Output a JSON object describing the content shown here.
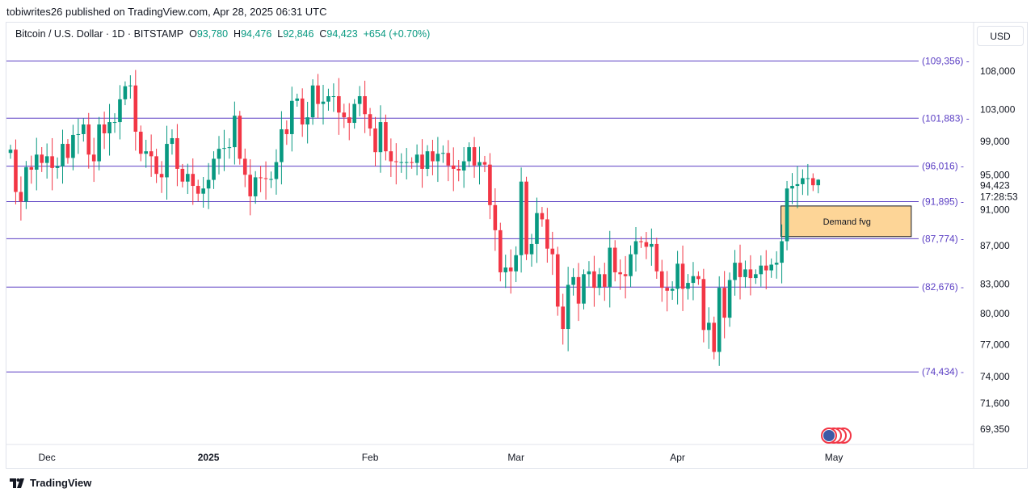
{
  "header": {
    "published": "tobiwrites26 published on TradingView.com, Apr 28, 2025 06:31 UTC"
  },
  "legend": {
    "symbol": "Bitcoin / U.S. Dollar · 1D · BITSTAMP",
    "o_label": "O",
    "o": "93,780",
    "h_label": "H",
    "h": "94,476",
    "l_label": "L",
    "l": "92,846",
    "c_label": "C",
    "c": "94,423",
    "change": "+654 (+0.70%)"
  },
  "currency": "USD",
  "price_tag": {
    "price": "94,423",
    "countdown": "17:28:53"
  },
  "annotation": {
    "label": "Demand fvg",
    "top": 91400,
    "bottom": 88000,
    "from_index": 148,
    "to_index": 173
  },
  "footer": {
    "brand": "TradingView"
  },
  "colors": {
    "up": "#089981",
    "down": "#f23645",
    "level": "#5b3fc4",
    "zone": "#fdd597"
  },
  "chart_data": {
    "type": "candlestick",
    "title": "Bitcoin / U.S. Dollar · 1D · BITSTAMP",
    "yscale": "log",
    "ylim": [
      68500,
      112000
    ],
    "x_start": "2024-11-24",
    "x_ticks": [
      {
        "label": "Dec",
        "index": 7
      },
      {
        "label": "2025",
        "index": 38
      },
      {
        "label": "Feb",
        "index": 69
      },
      {
        "label": "Mar",
        "index": 97
      },
      {
        "label": "Apr",
        "index": 128
      },
      {
        "label": "May",
        "index": 158
      }
    ],
    "y_ticks": [
      108000,
      103000,
      99000,
      95000,
      91000,
      87000,
      83000,
      80000,
      77000,
      74000,
      71600,
      69350
    ],
    "y_tick_labels": [
      "108,000",
      "103,000",
      "99,000",
      "95,000",
      "91,000",
      "87,000",
      "83,000",
      "80,000",
      "77,000",
      "74,000",
      "71,600",
      "69,350"
    ],
    "levels": [
      {
        "value": 109356,
        "label": "(109,356)"
      },
      {
        "value": 101883,
        "label": "(101,883)"
      },
      {
        "value": 96016,
        "label": "(96,016)"
      },
      {
        "value": 91895,
        "label": "(91,895)"
      },
      {
        "value": 87774,
        "label": "(87,774)"
      },
      {
        "value": 82676,
        "label": "(82,676)"
      },
      {
        "value": 74434,
        "label": "(74,434)"
      }
    ],
    "first_open": 97600,
    "closes": [
      98000,
      93000,
      91900,
      95900,
      95600,
      97400,
      96400,
      97200,
      95800,
      96000,
      98700,
      97000,
      99800,
      99900,
      101100,
      97400,
      96600,
      101100,
      100000,
      101400,
      101400,
      104300,
      106000,
      106100,
      100200,
      97500,
      97800,
      97200,
      95100,
      94700,
      98700,
      99400,
      95700,
      94200,
      95100,
      93700,
      92800,
      93400,
      94400,
      96900,
      98100,
      98200,
      98300,
      102200,
      96900,
      95000,
      92500,
      94700,
      94600,
      94500,
      94500,
      96500,
      100500,
      99900,
      104100,
      104400,
      101100,
      102000,
      106100,
      103700,
      104000,
      104700,
      104700,
      102600,
      102000,
      101300,
      103700,
      104700,
      102400,
      100600,
      97700,
      101400,
      97800,
      96600,
      96500,
      96500,
      96500,
      96400,
      97400,
      95700,
      97800,
      96600,
      97500,
      97600,
      96100,
      95700,
      95500,
      96600,
      98300,
      96100,
      96500,
      96200,
      91500,
      88700,
      84200,
      84700,
      84300,
      86000,
      94200,
      86100,
      87200,
      90600,
      89900,
      86700,
      86100,
      80700,
      78500,
      82900,
      83700,
      81000,
      84000,
      84300,
      82600,
      84000,
      82700,
      86800,
      84200,
      84000,
      83800,
      86100,
      87500,
      87400,
      86900,
      87200,
      84300,
      82600,
      82300,
      82500,
      85100,
      82500,
      83100,
      83800,
      83500,
      78400,
      79100,
      76300,
      82600,
      79600,
      83400,
      85200,
      83700,
      84500,
      83600,
      84000,
      84900,
      84400,
      85000,
      85200,
      87500,
      93400,
      93700,
      93900,
      94600,
      94600,
      93780,
      94423
    ],
    "last_bar": {
      "open": 93780,
      "high": 94476,
      "low": 92846,
      "close": 94423
    }
  }
}
